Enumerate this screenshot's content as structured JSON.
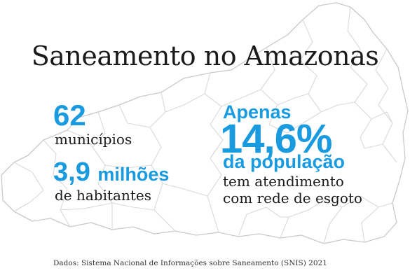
{
  "title": "Saneamento no Amazonas",
  "stats_left": {
    "municipios_value": "62",
    "municipios_label": "municípios",
    "population_value": "3,9",
    "population_unit": "milhões",
    "population_label": "de habitantes"
  },
  "stats_right": {
    "prefix": "Apenas",
    "percent": "14,6%",
    "subject": "da população",
    "description_line1": "tem atendimento",
    "description_line2": "com rede de esgoto"
  },
  "source": "Dados: Sistema Nacional de Informações sobre Saneamento (SNIS) 2021",
  "colors": {
    "accent": "#1a9be0",
    "text": "#1a1a1a",
    "map_lines": "#d9d9d9"
  }
}
